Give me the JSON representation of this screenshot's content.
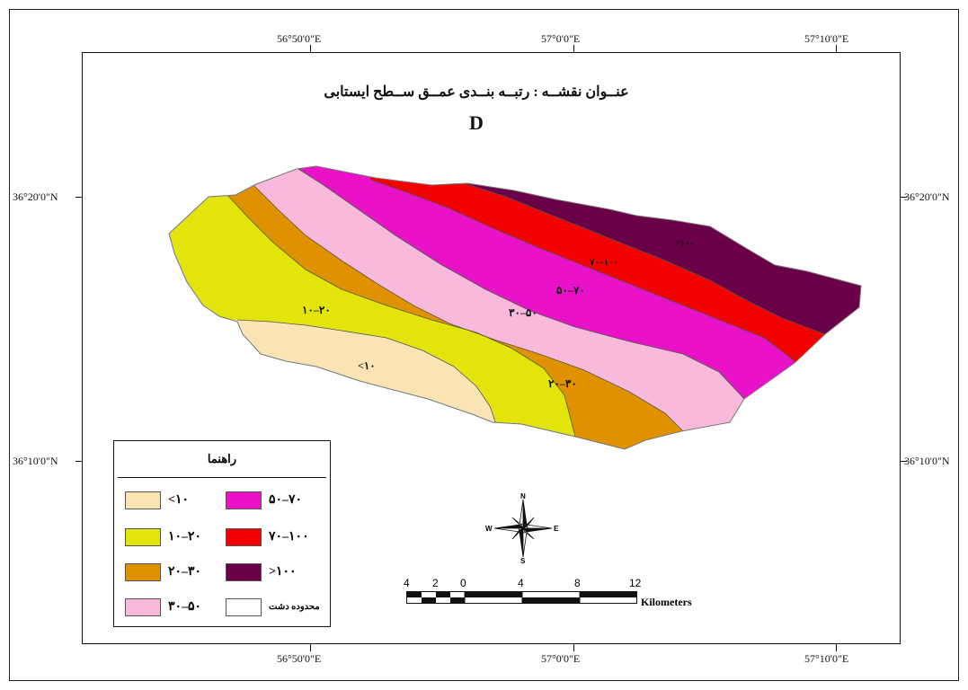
{
  "map": {
    "title": "عنــوان نقشــه : رتبــه بنــدی عمــق ســطح ایستابی",
    "letter": "D",
    "coords": {
      "top": [
        "56°50'0\"E",
        "57°0'0\"E",
        "57°10'0\"E"
      ],
      "bottom": [
        "56°50'0\"E",
        "57°0'0\"E",
        "57°10'0\"E"
      ],
      "left": [
        "36°20'0\"N",
        "36°10'0\"N"
      ],
      "right": [
        "36°20'0\"N",
        "36°10'0\"N"
      ]
    },
    "zone_labels": {
      "z1": "۱۰–۲۰",
      "z0": "<۱۰",
      "z3": "۳۰–۵۰",
      "z2": "۲۰–۳۰",
      "z4": "۵۰–۷۰",
      "z5": "۷۰–۱۰۰",
      "z6": ">۱۰۰"
    }
  },
  "legend": {
    "title": "راهنما",
    "items": [
      {
        "label": "<۱۰",
        "color": "#fbe4b4"
      },
      {
        "label": "۱۰–۲۰",
        "color": "#e2e40a"
      },
      {
        "label": "۲۰–۳۰",
        "color": "#df9100"
      },
      {
        "label": "۳۰–۵۰",
        "color": "#f8b9dc"
      },
      {
        "label": "۵۰–۷۰",
        "color": "#ea12c8"
      },
      {
        "label": "۷۰–۱۰۰",
        "color": "#f40000"
      },
      {
        "label": ">۱۰۰",
        "color": "#6a0047"
      },
      {
        "label": "محدوده دشت",
        "color": "#ffffff"
      }
    ]
  },
  "north_arrow": {
    "n": "N",
    "s": "S",
    "e": "E",
    "w": "W"
  },
  "scale": {
    "ticks": [
      "4",
      "2",
      "0",
      "4",
      "8",
      "12"
    ],
    "units": "Kilometers"
  }
}
